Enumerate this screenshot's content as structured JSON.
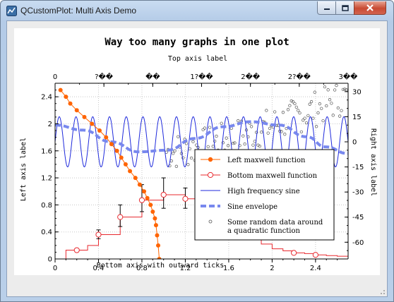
{
  "window": {
    "title": "QCustomPlot: Multi Axis Demo"
  },
  "chart_data": {
    "type": "line",
    "title": "Way too many graphs in one plot",
    "xlabel": "Bottom axis with outward ticks",
    "ylabel": "Left axis label",
    "x2label": "Top axis label",
    "y2label": "Right axis label",
    "xlim": [
      0,
      2.7
    ],
    "ylim": [
      0,
      2.6
    ],
    "x2lim": [
      0,
      3.1416
    ],
    "y2lim": [
      -70,
      35
    ],
    "x_ticks": [
      "0",
      "0.4",
      "0.8",
      "1.2",
      "1.6",
      "2",
      "2.4"
    ],
    "y_ticks": [
      "0",
      "0.4",
      "0.8",
      "1.2",
      "1.6",
      "2",
      "2.4"
    ],
    "x2_ticks": [
      "0",
      "?��",
      "��",
      "1?��",
      "2��",
      "2?��",
      "3��"
    ],
    "y2_ticks": [
      "30",
      "15",
      "0",
      "-15",
      "-30",
      "-45",
      "-60"
    ],
    "grid": true,
    "legend_position": "bottom-right",
    "series": [
      {
        "name": "Left maxwell function",
        "color": "#ff6400",
        "axes": "left-x / left-y (flipped: x on vertical axis)",
        "points": [
          [
            2.5,
            0.05
          ],
          [
            2.4,
            0.1
          ],
          [
            2.3,
            0.14
          ],
          [
            2.2,
            0.2
          ],
          [
            2.1,
            0.27
          ],
          [
            2.0,
            0.34
          ],
          [
            1.9,
            0.41
          ],
          [
            1.8,
            0.47
          ],
          [
            1.7,
            0.52
          ],
          [
            1.6,
            0.57
          ],
          [
            1.5,
            0.61
          ],
          [
            1.4,
            0.65
          ],
          [
            1.3,
            0.69
          ],
          [
            1.2,
            0.74
          ],
          [
            1.1,
            0.78
          ],
          [
            1.0,
            0.82
          ],
          [
            0.9,
            0.85
          ],
          [
            0.8,
            0.88
          ],
          [
            0.7,
            0.9
          ],
          [
            0.6,
            0.92
          ],
          [
            0.5,
            0.93
          ],
          [
            0.35,
            0.94
          ],
          [
            0.2,
            0.95
          ],
          [
            0.0,
            0.96
          ]
        ]
      },
      {
        "name": "Bottom maxwell function",
        "color": "#e8282e",
        "steps": [
          [
            0.0,
            0.0
          ],
          [
            0.1,
            0.13
          ],
          [
            0.2,
            0.13
          ],
          [
            0.3,
            0.2
          ],
          [
            0.4,
            0.36
          ],
          [
            0.5,
            0.36
          ],
          [
            0.6,
            0.62
          ],
          [
            0.7,
            0.62
          ],
          [
            0.8,
            0.87
          ],
          [
            0.9,
            0.87
          ],
          [
            1.0,
            0.95
          ],
          [
            1.1,
            0.95
          ],
          [
            1.2,
            0.89
          ],
          [
            1.3,
            0.84
          ],
          [
            1.4,
            0.78
          ],
          [
            1.5,
            0.63
          ],
          [
            1.6,
            0.5
          ],
          [
            1.7,
            0.4
          ],
          [
            1.8,
            0.32
          ],
          [
            1.9,
            0.22
          ],
          [
            2.0,
            0.15
          ],
          [
            2.1,
            0.12
          ],
          [
            2.2,
            0.09
          ],
          [
            2.3,
            0.08
          ],
          [
            2.4,
            0.06
          ],
          [
            2.5,
            0.05
          ],
          [
            2.6,
            0.04
          ],
          [
            2.7,
            0.04
          ]
        ],
        "markers": [
          [
            0.2,
            0.13
          ],
          [
            0.4,
            0.36
          ],
          [
            0.6,
            0.62
          ],
          [
            0.8,
            0.87
          ],
          [
            1.0,
            0.95
          ],
          [
            1.2,
            0.89
          ],
          [
            2.2,
            0.09
          ],
          [
            2.4,
            0.06
          ]
        ],
        "error_bars": [
          [
            0.4,
            0.3,
            0.43
          ],
          [
            0.6,
            0.48,
            0.8
          ],
          [
            0.8,
            0.7,
            1.1
          ],
          [
            1.0,
            0.75,
            1.2
          ],
          [
            1.2,
            0.75,
            1.05
          ]
        ]
      },
      {
        "name": "High frequency sine",
        "color": "#1f2adc",
        "amplitude": 15,
        "cycles_over_range": 17.5
      },
      {
        "name": "Sine envelope",
        "color": "#7888ee",
        "points": [
          [
            0.0,
            10
          ],
          [
            0.3,
            7
          ],
          [
            0.6,
            0
          ],
          [
            0.9,
            -6
          ],
          [
            1.2,
            -5
          ],
          [
            1.5,
            2
          ],
          [
            1.8,
            9
          ],
          [
            2.1,
            12
          ],
          [
            2.4,
            10
          ],
          [
            2.7,
            3
          ],
          [
            2.9,
            -3
          ],
          [
            3.14,
            -7
          ]
        ]
      },
      {
        "name": "Some random data around\na quadratic function",
        "color": "#555555",
        "description": "scatter points rising from about (1.2, -5) to (3.14, 27)"
      }
    ]
  }
}
